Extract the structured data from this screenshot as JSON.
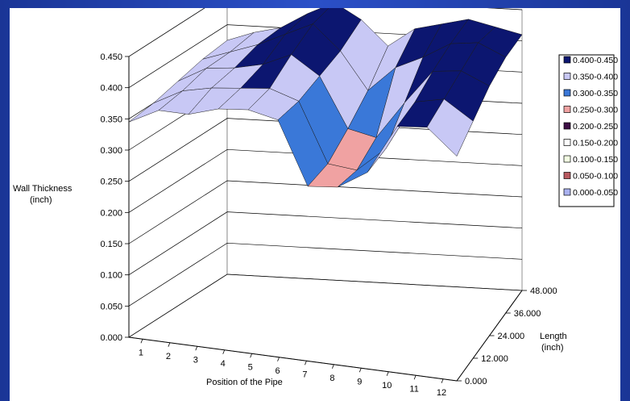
{
  "chart_data": {
    "type": "surface3d",
    "title": "",
    "xlabel": "Position of the Pipe",
    "ylabel_lines": [
      "Wall Thickness",
      "(inch)"
    ],
    "zlabel_lines": [
      "Length",
      "(inch)"
    ],
    "x_ticks": [
      "1",
      "2",
      "3",
      "4",
      "5",
      "6",
      "7",
      "8",
      "9",
      "10",
      "11",
      "12"
    ],
    "y_ticks": [
      "0.000",
      "0.050",
      "0.100",
      "0.150",
      "0.200",
      "0.250",
      "0.300",
      "0.350",
      "0.400",
      "0.450"
    ],
    "z_ticks": [
      "0.000",
      "12.000",
      "24.000",
      "36.000",
      "48.000"
    ],
    "ylim": [
      0,
      0.45
    ],
    "grid": true,
    "legend_position": "right",
    "legend": [
      {
        "label": "0.400-0.450",
        "color": "#0c1670"
      },
      {
        "label": "0.350-0.400",
        "color": "#c8c8f5"
      },
      {
        "label": "0.300-0.350",
        "color": "#3a78d8"
      },
      {
        "label": "0.250-0.300",
        "color": "#f0a2a2"
      },
      {
        "label": "0.200-0.250",
        "color": "#3d0f45"
      },
      {
        "label": "0.150-0.200",
        "color": "#ffffff"
      },
      {
        "label": "0.100-0.150",
        "color": "#f4ffe4"
      },
      {
        "label": "0.050-0.100",
        "color": "#b85a60"
      },
      {
        "label": "0.000-0.050",
        "color": "#aab2f0"
      }
    ],
    "z": [
      0,
      12,
      24,
      36,
      48
    ],
    "series": [
      {
        "name": "0.000",
        "values": [
          0.345,
          0.37,
          0.37,
          0.385,
          0.39,
          0.38,
          0.28,
          0.285,
          0.315,
          0.395,
          0.4,
          0.36
        ]
      },
      {
        "name": "12.000",
        "values": [
          0.35,
          0.375,
          0.385,
          0.39,
          0.395,
          0.38,
          0.285,
          0.28,
          0.32,
          0.4,
          0.41,
          0.38
        ]
      },
      {
        "name": "24.000",
        "values": [
          0.36,
          0.385,
          0.39,
          0.4,
          0.42,
          0.39,
          0.31,
          0.3,
          0.36,
          0.415,
          0.42,
          0.4
        ]
      },
      {
        "name": "36.000",
        "values": [
          0.37,
          0.385,
          0.4,
          0.42,
          0.44,
          0.4,
          0.34,
          0.38,
          0.4,
          0.425,
          0.43,
          0.41
        ]
      },
      {
        "name": "48.000",
        "values": [
          0.375,
          0.39,
          0.4,
          0.425,
          0.445,
          0.42,
          0.38,
          0.41,
          0.42,
          0.43,
          0.42,
          0.41
        ]
      }
    ]
  }
}
